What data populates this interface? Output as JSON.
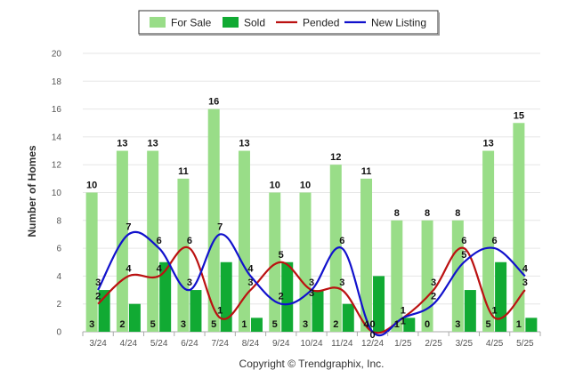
{
  "chart_data": {
    "type": "bar",
    "categories": [
      "3/24",
      "4/24",
      "5/24",
      "6/24",
      "7/24",
      "8/24",
      "9/24",
      "10/24",
      "11/24",
      "12/24",
      "1/25",
      "2/25",
      "3/25",
      "4/25",
      "5/25"
    ],
    "series": [
      {
        "name": "For Sale",
        "kind": "bar",
        "color": "#99dd88",
        "values": [
          10,
          13,
          13,
          11,
          16,
          13,
          10,
          10,
          12,
          11,
          8,
          8,
          8,
          13,
          15
        ]
      },
      {
        "name": "Sold",
        "kind": "bar",
        "color": "#11aa33",
        "values": [
          3,
          2,
          5,
          3,
          5,
          1,
          5,
          3,
          2,
          4,
          1,
          0,
          3,
          5,
          1
        ]
      },
      {
        "name": "Pended",
        "kind": "line",
        "color": "#bb1111",
        "values": [
          2,
          4,
          4,
          6,
          1,
          3,
          5,
          3,
          3,
          0,
          1,
          3,
          6,
          1,
          3
        ]
      },
      {
        "name": "New Listing",
        "kind": "line",
        "color": "#1111cc",
        "values": [
          3,
          7,
          6,
          3,
          7,
          4,
          2,
          3,
          6,
          0,
          1,
          2,
          5,
          6,
          4
        ]
      }
    ],
    "ylabel": "Number of Homes",
    "xlabel": "",
    "ylim": [
      0,
      20
    ],
    "yticks": [
      0,
      2,
      4,
      6,
      8,
      10,
      12,
      14,
      16,
      18,
      20
    ],
    "grid": true,
    "legend_position": "top-center"
  },
  "credit": "Copyright © Trendgraphix, Inc."
}
